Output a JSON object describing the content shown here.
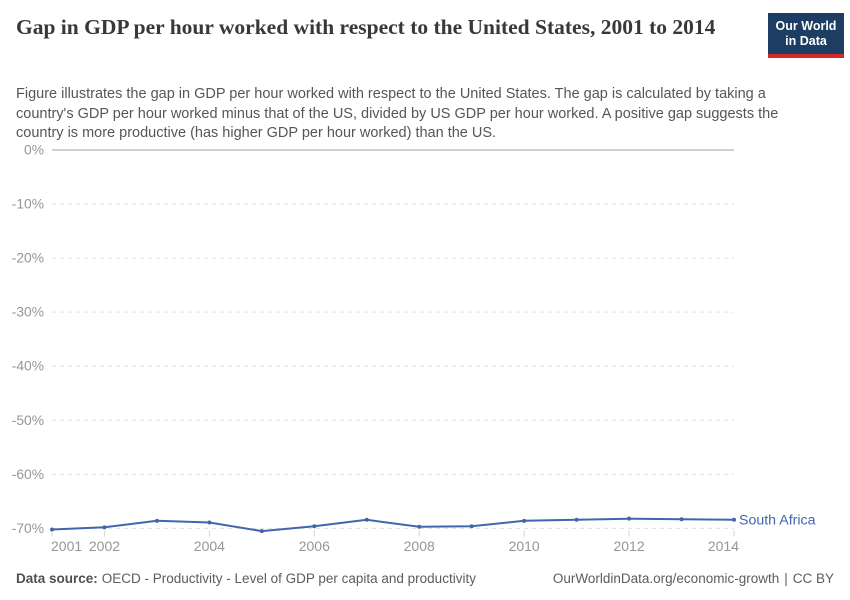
{
  "header": {
    "title": "Gap in GDP per hour worked with respect to the United States, 2001 to 2014",
    "subtitle": "Figure illustrates the gap in GDP per hour worked with respect to the United States. The gap is calculated by taking a country's GDP per hour worked minus that of the US, divided by US GDP per hour worked. A positive gap suggests the country is more productive (has higher GDP per hour worked) than the US.",
    "logo": {
      "line1": "Our World",
      "line2": "in Data",
      "bg_color": "#1d3d63",
      "accent_color": "#d42b27",
      "text_color": "#ffffff"
    }
  },
  "chart_data": {
    "type": "line",
    "title": "Gap in GDP per hour worked with respect to the United States, 2001 to 2014",
    "xlabel": "",
    "ylabel": "",
    "x": [
      2001,
      2002,
      2003,
      2004,
      2005,
      2006,
      2007,
      2008,
      2009,
      2010,
      2011,
      2012,
      2013,
      2014
    ],
    "series": [
      {
        "name": "South Africa",
        "color": "#4166ac",
        "values": [
          -70.2,
          -69.8,
          -68.6,
          -68.9,
          -70.5,
          -69.6,
          -68.4,
          -69.7,
          -69.6,
          -68.6,
          -68.4,
          -68.2,
          -68.3,
          -68.4
        ]
      }
    ],
    "ylim": [
      -71.5,
      0
    ],
    "yticks": [
      0,
      -10,
      -20,
      -30,
      -40,
      -50,
      -60,
      -70
    ],
    "ytick_labels": [
      "0%",
      "-10%",
      "-20%",
      "-30%",
      "-40%",
      "-50%",
      "-60%",
      "-70%"
    ],
    "xticks": [
      2001,
      2002,
      2004,
      2006,
      2008,
      2010,
      2012,
      2014
    ],
    "xtick_labels": [
      "2001",
      "2002",
      "2004",
      "2006",
      "2008",
      "2010",
      "2012",
      "2014"
    ],
    "grid": "horizontal-dashed",
    "legend": "inline-end-of-line-label",
    "axis_text_color": "#969696",
    "gridline_color": "#e0e0e0",
    "zero_line_color": "#a0a0a0"
  },
  "footer": {
    "datasource_label": "Data source:",
    "datasource_text": "OECD - Productivity - Level of GDP per capita and productivity",
    "link": "OurWorldinData.org/economic-growth",
    "divider": "|",
    "license": "CC BY"
  }
}
